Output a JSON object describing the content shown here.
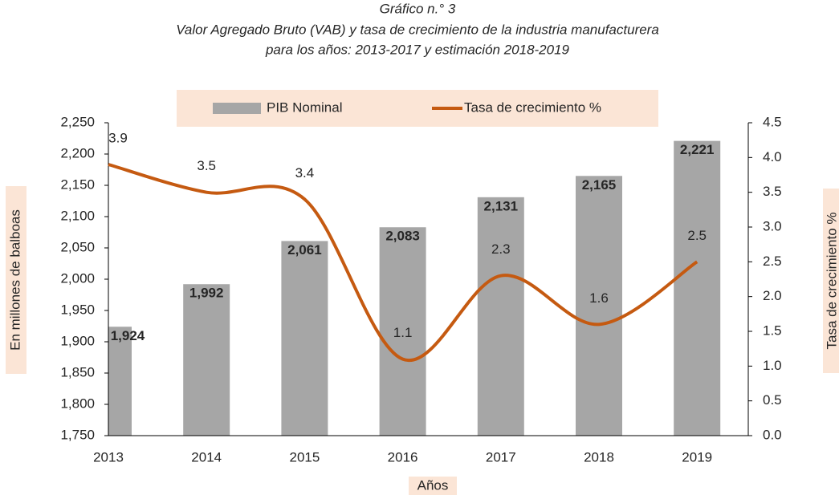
{
  "chart_data": {
    "type": "bar-line",
    "title": "Gráfico n.° 3",
    "subtitle": [
      "Valor Agregado Bruto (VAB) y tasa de crecimiento de la industria manufacturera",
      "para los años: 2013-2017 y estimación 2018-2019"
    ],
    "categories": [
      "2013",
      "2014",
      "2015",
      "2016",
      "2017",
      "2018",
      "2019"
    ],
    "x_label": "Años",
    "y_label": "En millones de balboas",
    "y2_label": "Tasa de crecimiento %",
    "ylim": [
      1750,
      2250
    ],
    "yticks": [
      {
        "value": 1750,
        "label": "1,750"
      },
      {
        "value": 1800,
        "label": "1,800"
      },
      {
        "value": 1850,
        "label": "1,850"
      },
      {
        "value": 1900,
        "label": "1,900"
      },
      {
        "value": 1950,
        "label": "1,950"
      },
      {
        "value": 2000,
        "label": "2,000"
      },
      {
        "value": 2050,
        "label": "2,050"
      },
      {
        "value": 2100,
        "label": "2,100"
      },
      {
        "value": 2150,
        "label": "2,150"
      },
      {
        "value": 2200,
        "label": "2,200"
      },
      {
        "value": 2250,
        "label": "2,250"
      }
    ],
    "y2lim": [
      0,
      4.5
    ],
    "y2ticks": [
      {
        "value": 0,
        "label": "0.0"
      },
      0.5,
      {
        "value": 1,
        "label": "1.0"
      },
      1.5,
      {
        "value": 2,
        "label": "2.0"
      },
      2.5,
      {
        "value": 3,
        "label": "3.0"
      },
      3.5,
      {
        "value": 4,
        "label": "4.0"
      },
      4.5
    ],
    "legend": "top",
    "series": [
      {
        "name": "PIB Nominal",
        "kind": "bar",
        "color": "#a6a6a6",
        "values": [
          1924,
          1992,
          2061,
          2083,
          2131,
          2165,
          2221
        ],
        "value_labels": [
          "1,924",
          "1,992",
          "2,061",
          "2,083",
          "2,131",
          "2,165",
          "2,221"
        ]
      },
      {
        "name": "Tasa de crecimiento %",
        "kind": "line",
        "axis": "y2",
        "color": "#c55a11",
        "values": [
          3.9,
          3.5,
          3.4,
          1.1,
          2.3,
          1.6,
          2.5
        ]
      }
    ]
  }
}
